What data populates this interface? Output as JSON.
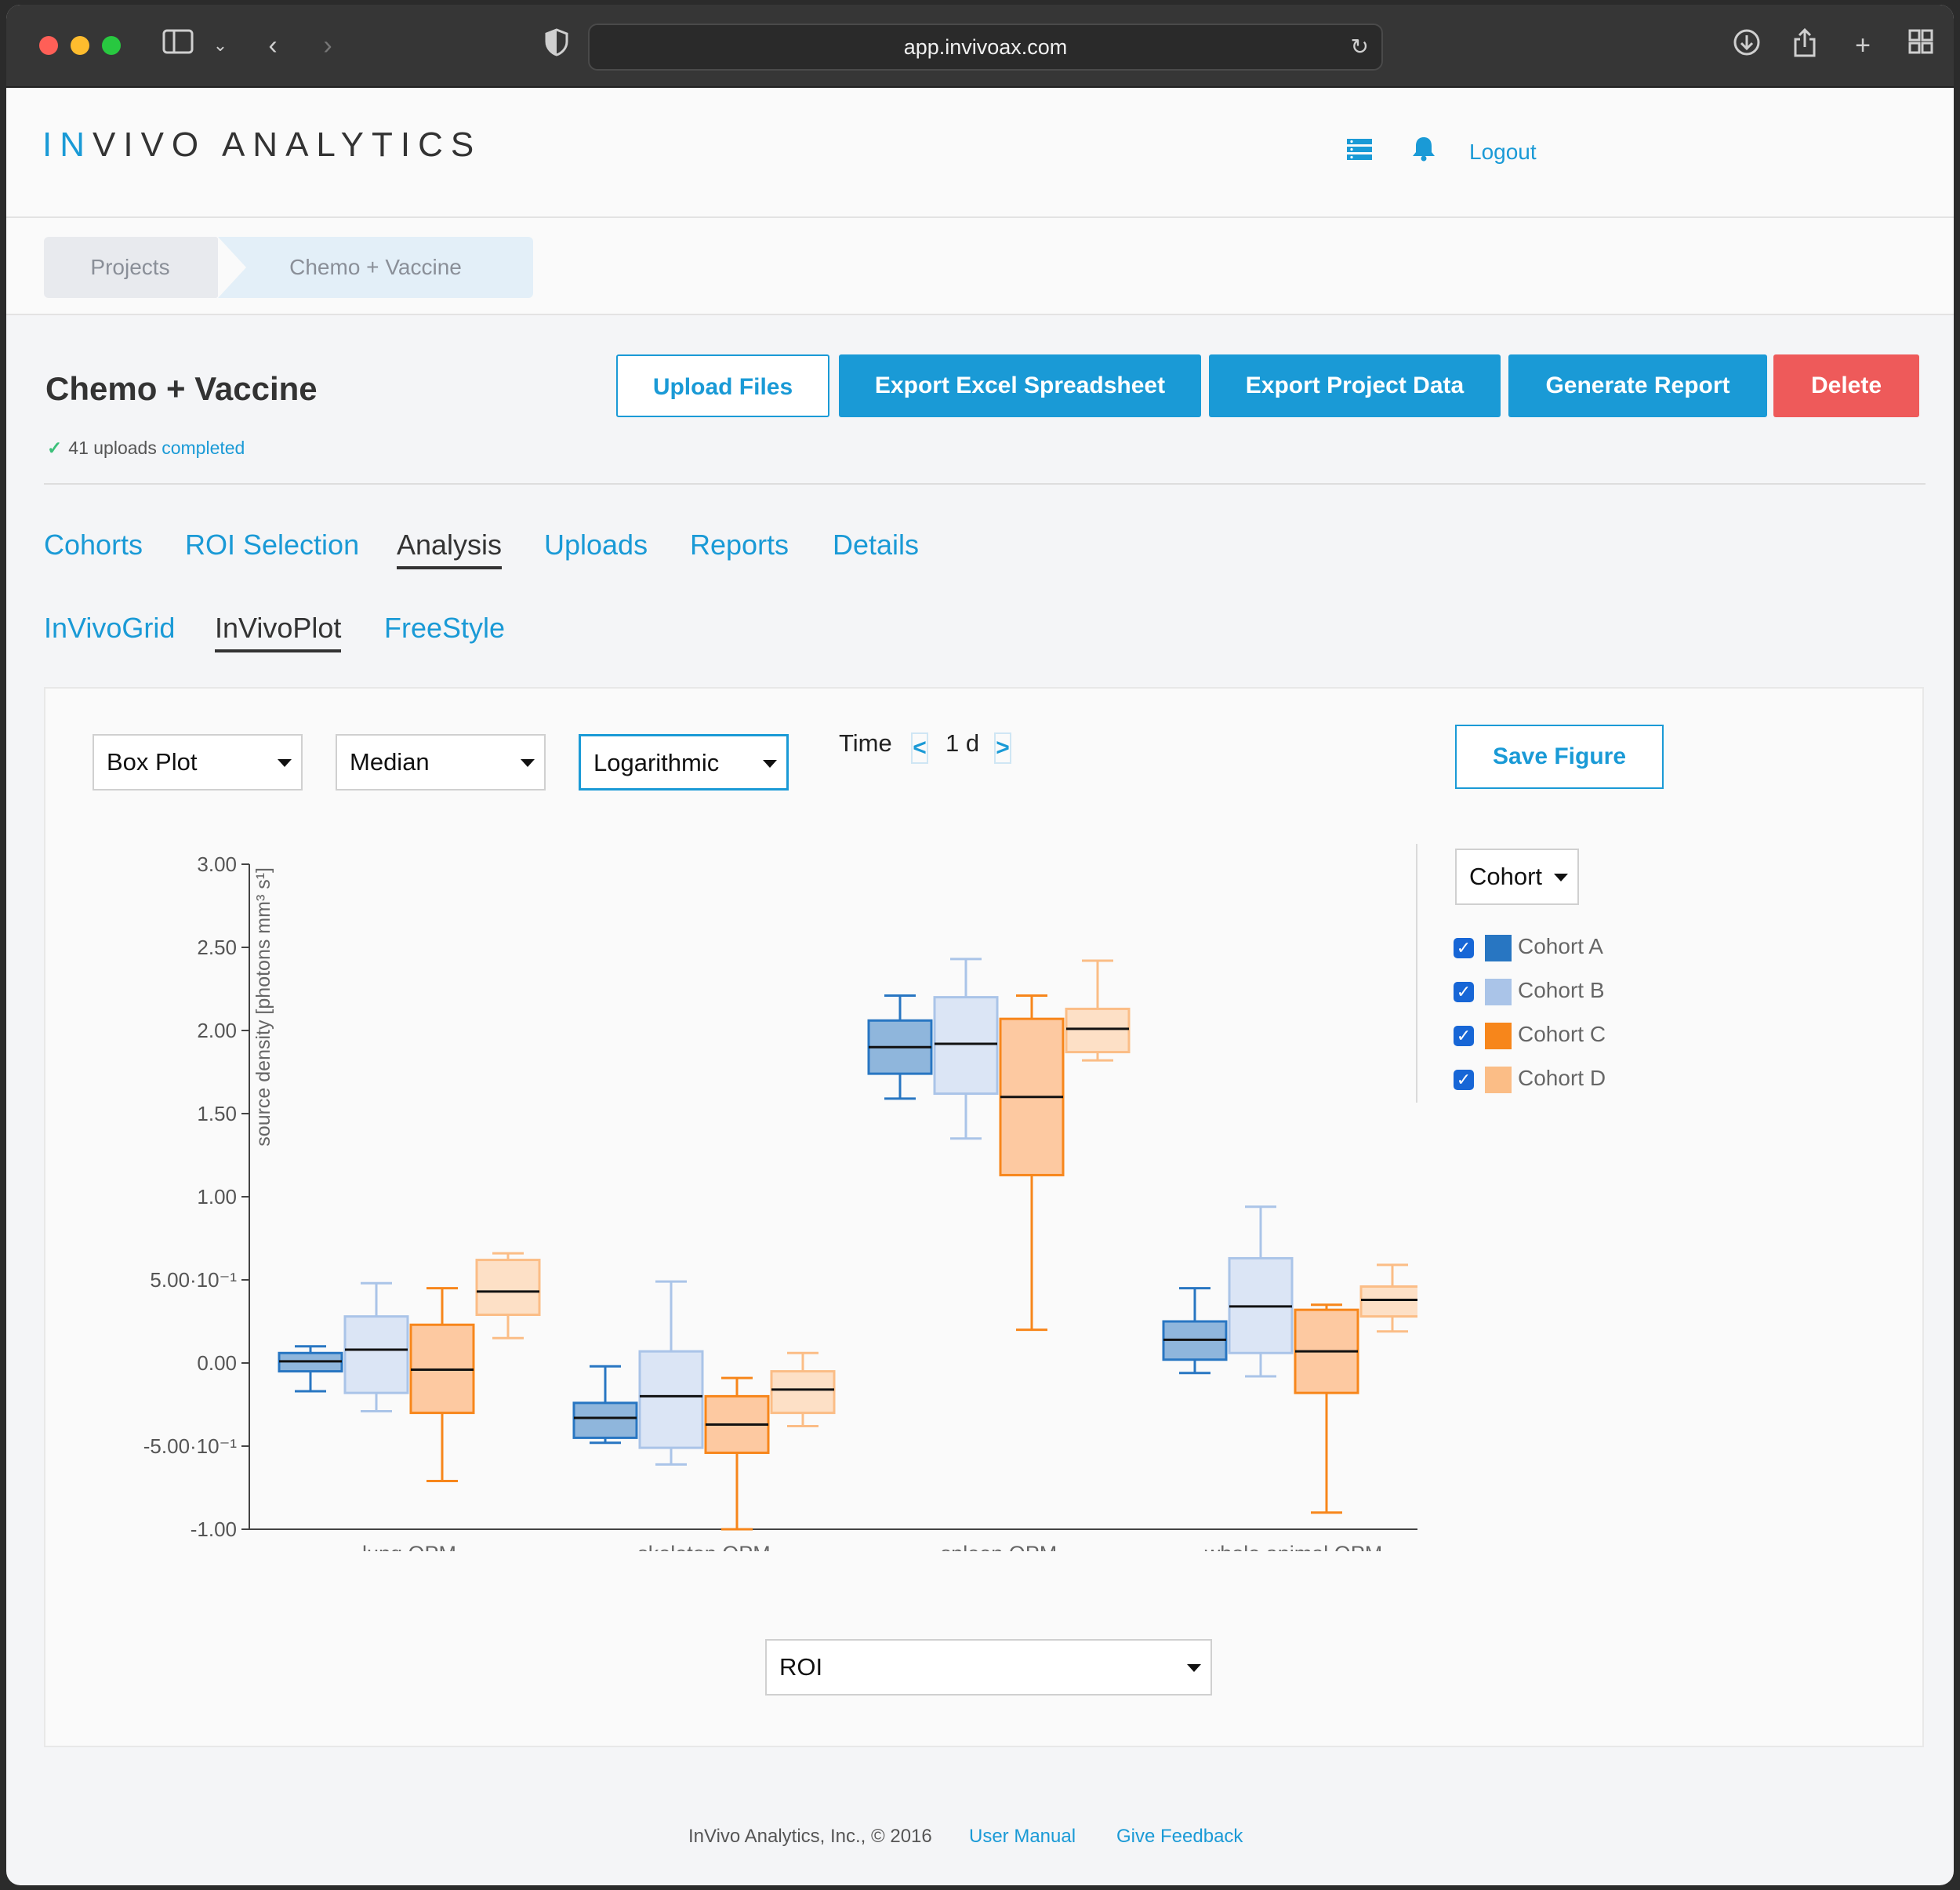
{
  "browser": {
    "url": "app.invivoax.com"
  },
  "header": {
    "logo_in": "IN",
    "logo_rest": "VIVO ANALYTICS",
    "logout": "Logout"
  },
  "breadcrumb": [
    "Projects",
    "Chemo + Vaccine"
  ],
  "project": {
    "title": "Chemo + Vaccine",
    "uploads_count": "41 uploads",
    "uploads_state": "completed",
    "buttons": {
      "upload": "Upload Files",
      "export_excel": "Export Excel Spreadsheet",
      "export_project": "Export Project Data",
      "report": "Generate Report",
      "delete": "Delete"
    }
  },
  "tabs": [
    "Cohorts",
    "ROI Selection",
    "Analysis",
    "Uploads",
    "Reports",
    "Details"
  ],
  "subtabs": [
    "InVivoGrid",
    "InVivoPlot",
    "FreeStyle"
  ],
  "controls": {
    "plot_type": "Box Plot",
    "statistic": "Median",
    "scale": "Logarithmic",
    "time_label": "Time",
    "time_prev": "<",
    "time_value": "1 d",
    "time_next": ">",
    "save_figure": "Save Figure",
    "group_by": "Cohort",
    "x_select": "ROI"
  },
  "legend": [
    {
      "label": "Cohort A",
      "color": "#2876c2"
    },
    {
      "label": "Cohort B",
      "color": "#aac4e8"
    },
    {
      "label": "Cohort C",
      "color": "#f7861b"
    },
    {
      "label": "Cohort D",
      "color": "#fbbd86"
    }
  ],
  "chart_data": {
    "type": "box",
    "ylabel": "source density [photons mm³ s¹]",
    "ylim": [
      -1.0,
      3.0
    ],
    "yticks": [
      {
        "v": 3.0,
        "label": "3.00"
      },
      {
        "v": 2.5,
        "label": "2.50"
      },
      {
        "v": 2.0,
        "label": "2.00"
      },
      {
        "v": 1.5,
        "label": "1.50"
      },
      {
        "v": 1.0,
        "label": "1.00"
      },
      {
        "v": 0.5,
        "label": "5.00·10⁻¹"
      },
      {
        "v": 0.0,
        "label": "0.00"
      },
      {
        "v": -0.5,
        "label": "-5.00·10⁻¹"
      },
      {
        "v": -1.0,
        "label": "-1.00"
      }
    ],
    "categories": [
      "lung OPM",
      "skeleton OPM",
      "spleen OPM",
      "whole animal OPM"
    ],
    "series": [
      {
        "name": "Cohort A",
        "boxes": [
          {
            "min": -0.17,
            "q1": -0.05,
            "median": 0.01,
            "q3": 0.06,
            "max": 0.1
          },
          {
            "min": -0.48,
            "q1": -0.45,
            "median": -0.33,
            "q3": -0.24,
            "max": -0.02
          },
          {
            "min": 1.59,
            "q1": 1.74,
            "median": 1.9,
            "q3": 2.06,
            "max": 2.21
          },
          {
            "min": -0.06,
            "q1": 0.02,
            "median": 0.14,
            "q3": 0.25,
            "max": 0.45
          }
        ]
      },
      {
        "name": "Cohort B",
        "boxes": [
          {
            "min": -0.29,
            "q1": -0.18,
            "median": 0.08,
            "q3": 0.28,
            "max": 0.48
          },
          {
            "min": -0.61,
            "q1": -0.51,
            "median": -0.2,
            "q3": 0.07,
            "max": 0.49
          },
          {
            "min": 1.35,
            "q1": 1.62,
            "median": 1.92,
            "q3": 2.2,
            "max": 2.43
          },
          {
            "min": -0.08,
            "q1": 0.06,
            "median": 0.34,
            "q3": 0.63,
            "max": 0.94
          }
        ]
      },
      {
        "name": "Cohort C",
        "boxes": [
          {
            "min": -0.71,
            "q1": -0.3,
            "median": -0.04,
            "q3": 0.23,
            "max": 0.45
          },
          {
            "min": -1.0,
            "q1": -0.54,
            "median": -0.37,
            "q3": -0.2,
            "max": -0.09
          },
          {
            "min": 0.2,
            "q1": 1.13,
            "median": 1.6,
            "q3": 2.07,
            "max": 2.21
          },
          {
            "min": -0.9,
            "q1": -0.18,
            "median": 0.07,
            "q3": 0.32,
            "max": 0.35
          }
        ]
      },
      {
        "name": "Cohort D",
        "boxes": [
          {
            "min": 0.15,
            "q1": 0.29,
            "median": 0.43,
            "q3": 0.62,
            "max": 0.66
          },
          {
            "min": -0.38,
            "q1": -0.3,
            "median": -0.16,
            "q3": -0.05,
            "max": 0.06
          },
          {
            "min": 1.82,
            "q1": 1.87,
            "median": 2.01,
            "q3": 2.13,
            "max": 2.42
          },
          {
            "min": 0.19,
            "q1": 0.28,
            "median": 0.38,
            "q3": 0.46,
            "max": 0.59
          }
        ]
      }
    ],
    "legend_position": "right"
  },
  "footer": {
    "copyright": "InVivo Analytics, Inc., © 2016",
    "manual": "User Manual",
    "feedback": "Give Feedback"
  }
}
